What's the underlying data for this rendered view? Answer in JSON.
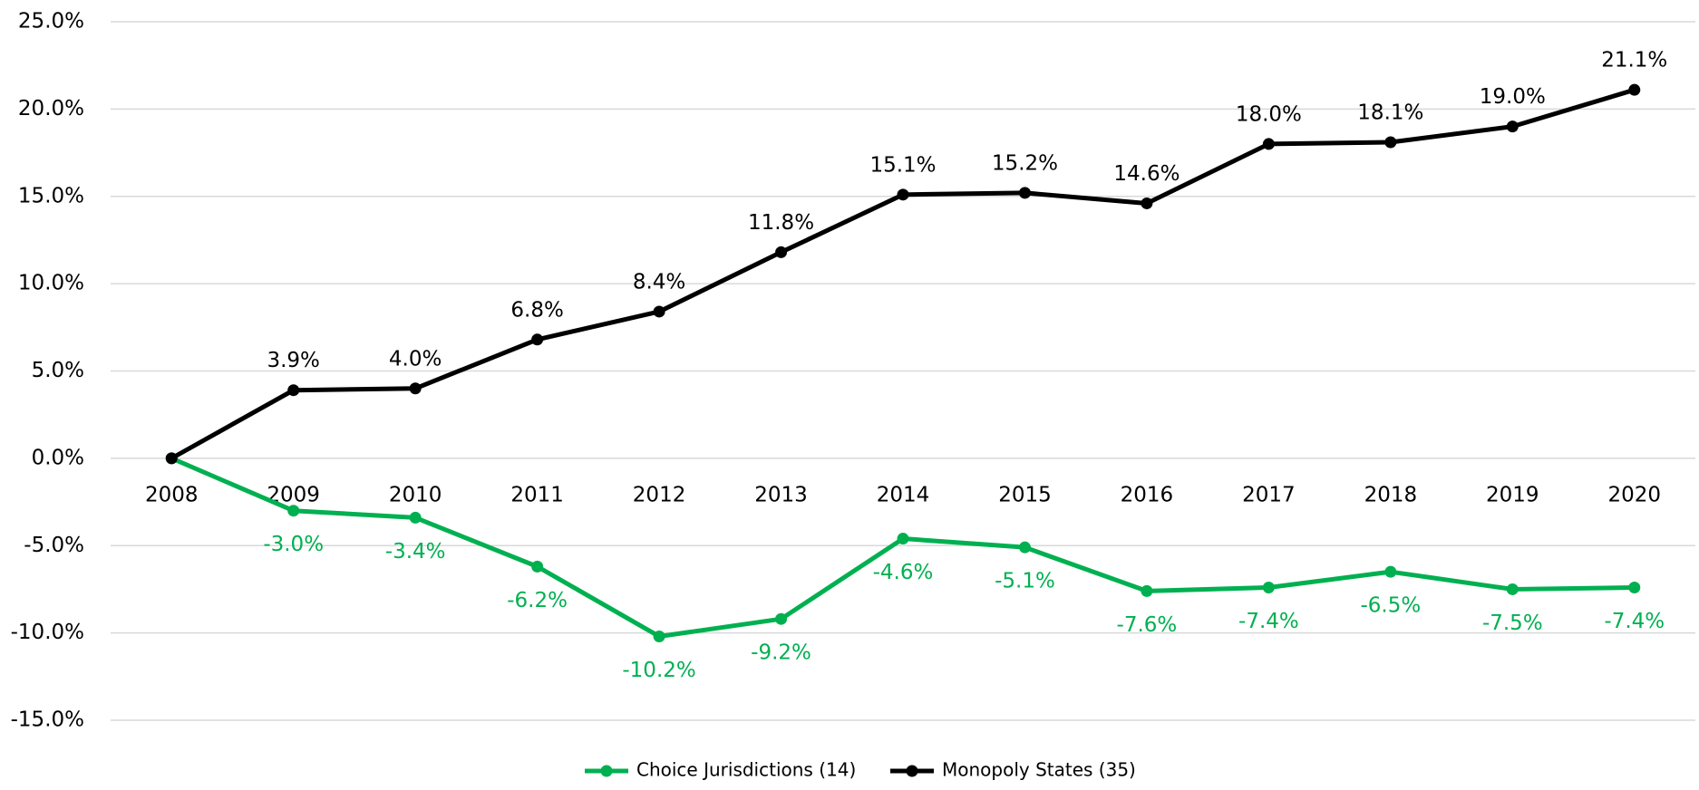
{
  "chart_data": {
    "type": "line",
    "categories": [
      "2008",
      "2009",
      "2010",
      "2011",
      "2012",
      "2013",
      "2014",
      "2015",
      "2016",
      "2017",
      "2018",
      "2019",
      "2020"
    ],
    "series": [
      {
        "name": "Choice Jurisdictions (14)",
        "color": "#00b050",
        "values": [
          0,
          -3.0,
          -3.4,
          -6.2,
          -10.2,
          -9.2,
          -4.6,
          -5.1,
          -7.6,
          -7.4,
          -6.5,
          -7.5,
          -7.4
        ],
        "value_labels": [
          null,
          "-3.0%",
          "-3.4%",
          "-6.2%",
          "-10.2%",
          "-9.2%",
          "-4.6%",
          "-5.1%",
          "-7.6%",
          "-7.4%",
          "-6.5%",
          "-7.5%",
          "-7.4%"
        ]
      },
      {
        "name": "Monopoly States (35)",
        "color": "#000000",
        "values": [
          0,
          3.9,
          4.0,
          6.8,
          8.4,
          11.8,
          15.1,
          15.2,
          14.6,
          18.0,
          18.1,
          19.0,
          21.1
        ],
        "value_labels": [
          null,
          "3.9%",
          "4.0%",
          "6.8%",
          "8.4%",
          "11.8%",
          "15.1%",
          "15.2%",
          "14.6%",
          "18.0%",
          "18.1%",
          "19.0%",
          "21.1%"
        ]
      }
    ],
    "ylim": [
      -15,
      25
    ],
    "yticks": [
      {
        "value": -15,
        "label": "-15.0%"
      },
      {
        "value": -10,
        "label": "-10.0%"
      },
      {
        "value": -5,
        "label": "-5.0%"
      },
      {
        "value": 0,
        "label": "0.0%"
      },
      {
        "value": 5,
        "label": "5.0%"
      },
      {
        "value": 10,
        "label": "10.0%"
      },
      {
        "value": 15,
        "label": "15.0%"
      },
      {
        "value": 20,
        "label": "20.0%"
      },
      {
        "value": 25,
        "label": "25.0%"
      }
    ],
    "grid": true,
    "legend": "bottom"
  }
}
